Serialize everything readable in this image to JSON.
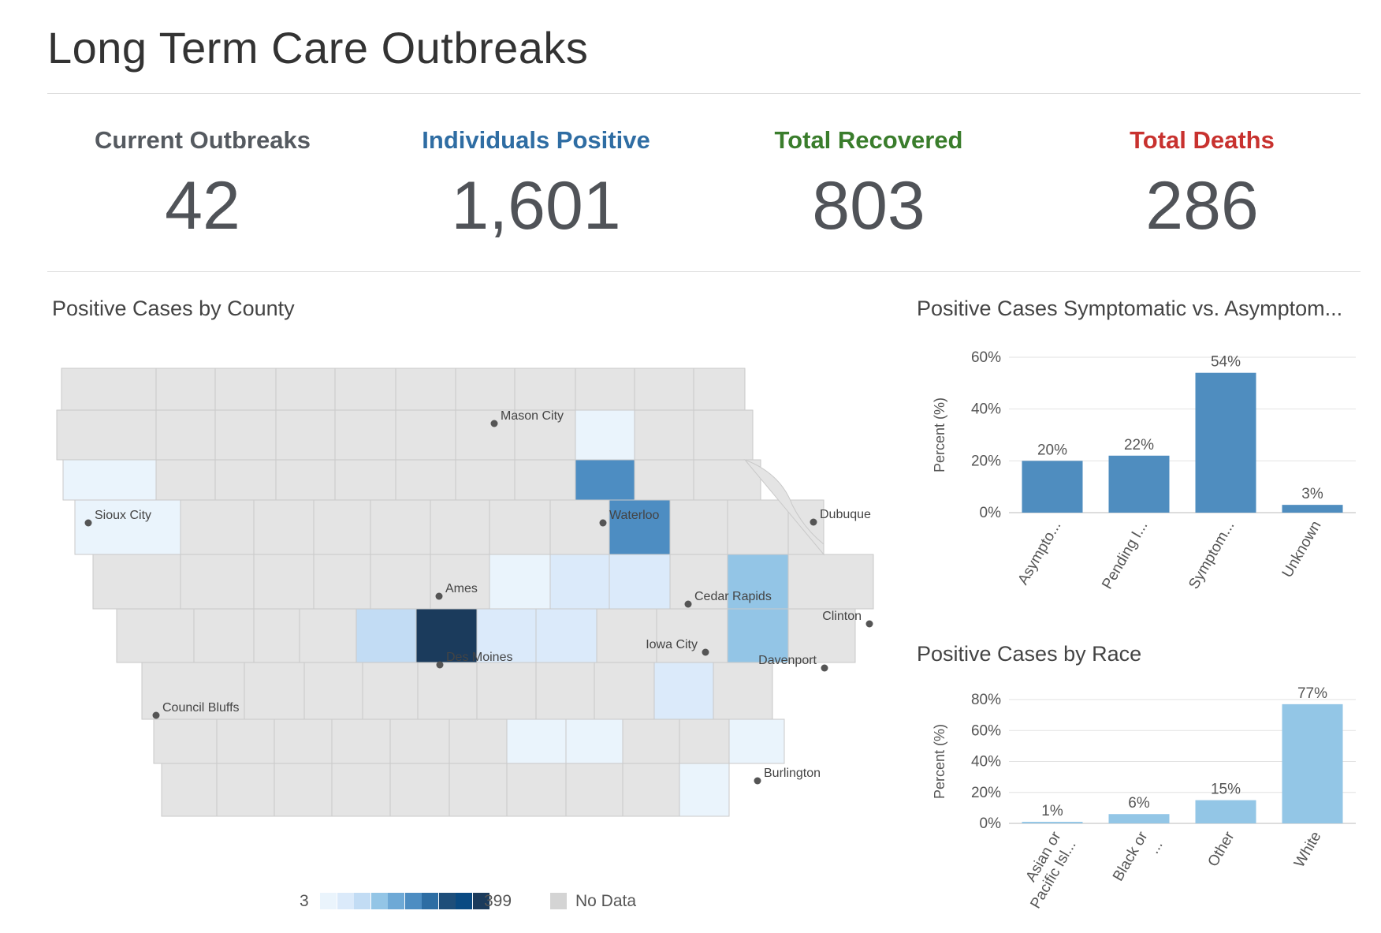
{
  "page": {
    "title": "Long Term Care Outbreaks"
  },
  "kpis": [
    {
      "label": "Current Outbreaks",
      "value": "42",
      "color": "#555a60"
    },
    {
      "label": "Individuals Positive",
      "value": "1,601",
      "color": "#2f6da3"
    },
    {
      "label": "Total Recovered",
      "value": "803",
      "color": "#3a7d2c"
    },
    {
      "label": "Total Deaths",
      "value": "286",
      "color": "#c8322f"
    }
  ],
  "map": {
    "title": "Positive Cases by County",
    "colors": {
      "no_data": "#e4e4e4",
      "border": "#c9c9c9",
      "ramp": [
        "#eaf4fc",
        "#dbeafa",
        "#c2dcf4",
        "#93c5e6",
        "#6ea9d6",
        "#4d8dc2",
        "#2d6da3",
        "#1e4e7a",
        "#0a4a82",
        "#1b3b5c"
      ]
    },
    "cities": [
      "Mason City",
      "Sioux City",
      "Waterloo",
      "Dubuque",
      "Ames",
      "Cedar Rapids",
      "Clinton",
      "Des Moines",
      "Iowa City",
      "Davenport",
      "Council Bluffs",
      "Burlington"
    ],
    "legend": {
      "min_label": "3",
      "max_label": "399",
      "no_data_label": "No Data"
    }
  },
  "chart_data": [
    {
      "type": "bar",
      "title": "Positive Cases Symptomatic vs. Asymptom...",
      "ylabel": "Percent (%)",
      "ylim": [
        0,
        60
      ],
      "yticks": [
        "0%",
        "20%",
        "40%",
        "60%"
      ],
      "categories": [
        "Asympto...",
        "Pending I...",
        "Symptom...",
        "Unknown"
      ],
      "values": [
        20,
        22,
        54,
        3
      ],
      "value_labels": [
        "20%",
        "22%",
        "54%",
        "3%"
      ],
      "color": "#4f8dbf",
      "grid": true
    },
    {
      "type": "bar",
      "title": "Positive Cases by Race",
      "ylabel": "Percent (%)",
      "ylim": [
        0,
        80
      ],
      "yticks": [
        "0%",
        "20%",
        "40%",
        "60%",
        "80%"
      ],
      "categories": [
        "Asian or Pacific Isl...",
        "Black or ...",
        "Other",
        "White"
      ],
      "values": [
        1,
        6,
        15,
        77
      ],
      "value_labels": [
        "1%",
        "6%",
        "15%",
        "77%"
      ],
      "color": "#93c6e6",
      "grid": true
    }
  ]
}
